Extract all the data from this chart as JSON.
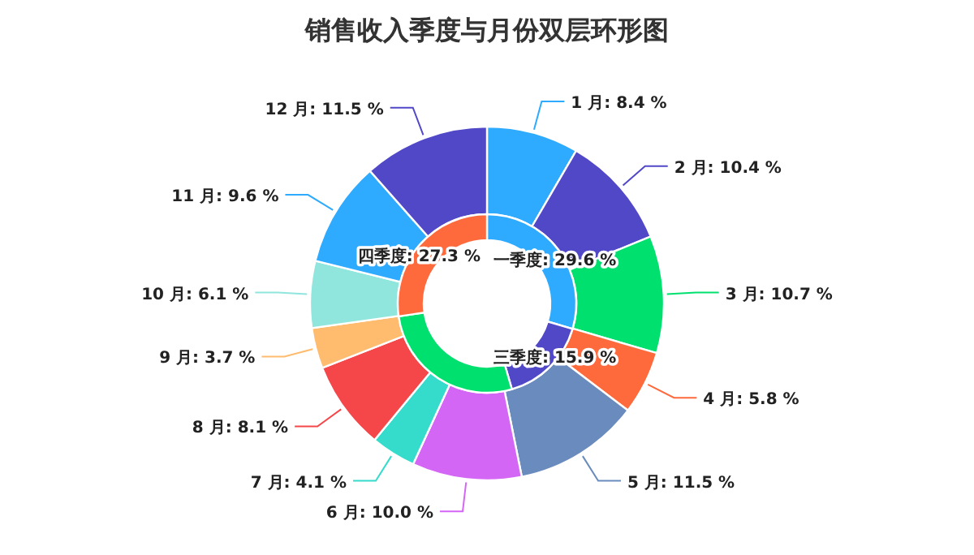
{
  "chart_data": [
    {
      "type": "donut",
      "title": "销售收入季度与月份双层环形图",
      "categories": [
        "1 月",
        "2 月",
        "3 月",
        "4 月",
        "5 月",
        "6 月",
        "7 月",
        "8 月",
        "9 月",
        "10 月",
        "11 月",
        "12 月"
      ],
      "values": [
        8.4,
        10.4,
        10.7,
        5.8,
        11.5,
        10.0,
        4.1,
        8.1,
        3.7,
        6.1,
        9.6,
        11.5
      ],
      "value_labels": [
        "8.4 %",
        "10.4 %",
        "10.7 %",
        "5.8 %",
        "11.5 %",
        "10.0 %",
        "4.1 %",
        "8.1 %",
        "3.7 %",
        "6.1 %",
        "9.6 %",
        "11.5 %"
      ],
      "colors": [
        "#2eaaff",
        "#5148c8",
        "#00e06e",
        "#ff6a3d",
        "#6a8bbd",
        "#d466f5",
        "#35dccb",
        "#f5474a",
        "#ffbb6e",
        "#90e6dc",
        "#2eaaff",
        "#5148c8"
      ]
    },
    {
      "type": "donut",
      "categories": [
        "一季度",
        "三季度",
        null,
        "四季度"
      ],
      "values": [
        29.6,
        15.9,
        27.2,
        27.3
      ],
      "value_labels": [
        "29.6 %",
        "15.9 %",
        null,
        "27.3 %"
      ],
      "colors": [
        "#2eaaff",
        "#5148c8",
        "#00e06e",
        "#ff6a3d"
      ]
    }
  ]
}
